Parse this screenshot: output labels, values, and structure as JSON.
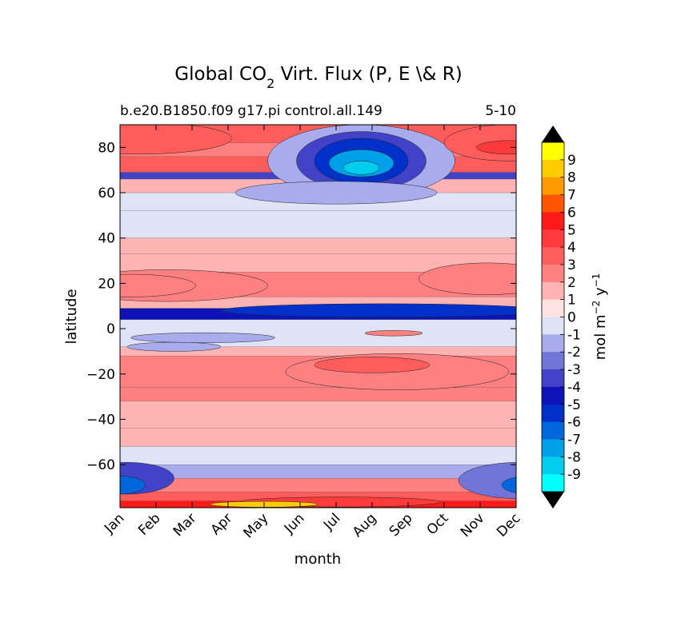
{
  "chart_data": {
    "type": "heatmap",
    "title": "Global CO",
    "title_sub": "2",
    "title_rest": " Virt. Flux (P, E \\& R)",
    "subtitle_left": "b.e20.B1850.f09 g17.pi control.all.149",
    "subtitle_right": "5-10",
    "xlabel": "month",
    "ylabel": "latitude",
    "x_ticks": [
      "Jan",
      "Feb",
      "Mar",
      "Apr",
      "May",
      "Jun",
      "Jul",
      "Aug",
      "Sep",
      "Oct",
      "Nov",
      "Dec"
    ],
    "y_ticks": [
      80,
      60,
      40,
      20,
      0,
      -20,
      -40,
      -60
    ],
    "y_tick_labels": [
      "80",
      "60",
      "40",
      "20",
      "0",
      "−20",
      "−40",
      "−60"
    ],
    "ylim": [
      -79,
      90
    ],
    "colorbar": {
      "label": "mol m",
      "label_sup1": "−2",
      "label_mid": " y",
      "label_sup2": "−1",
      "levels": [
        "9",
        "8",
        "7",
        "6",
        "5",
        "4",
        "3",
        "2",
        "1",
        "0",
        "-1",
        "-2",
        "-3",
        "-4",
        "-5",
        "-6",
        "-7",
        "-8",
        "-9"
      ],
      "colors": [
        "#ffff00",
        "#ffcc00",
        "#ff9900",
        "#ff5500",
        "#ff1a1a",
        "#ff3a3a",
        "#ff5c5c",
        "#ff8080",
        "#ffb3b3",
        "#ffe2e2",
        "#e0e2f5",
        "#a8acec",
        "#7275d8",
        "#4142c8",
        "#0d13b6",
        "#0030c8",
        "#0066dd",
        "#00a0e8",
        "#00ccee",
        "#00ffff"
      ],
      "over_color": "#000000",
      "under_color": "#000000"
    },
    "bands": [
      {
        "lat": [
          82,
          90
        ],
        "level": 3
      },
      {
        "lat": [
          76,
          82
        ],
        "level": 2
      },
      {
        "lat": [
          69,
          76
        ],
        "level": 3
      },
      {
        "lat": [
          66,
          69
        ],
        "level": -4
      },
      {
        "lat": [
          60,
          66
        ],
        "level": 1
      },
      {
        "lat": [
          52,
          60
        ],
        "level": -1
      },
      {
        "lat": [
          40,
          52
        ],
        "level": -1
      },
      {
        "lat": [
          33,
          40
        ],
        "level": 1
      },
      {
        "lat": [
          25,
          33
        ],
        "level": 1
      },
      {
        "lat": [
          14,
          25
        ],
        "level": 2
      },
      {
        "lat": [
          9,
          14
        ],
        "level": 1
      },
      {
        "lat": [
          4,
          9
        ],
        "level": -5
      },
      {
        "lat": [
          -8,
          4
        ],
        "level": -1
      },
      {
        "lat": [
          -12,
          -8
        ],
        "level": 1
      },
      {
        "lat": [
          -26,
          -12
        ],
        "level": 2
      },
      {
        "lat": [
          -32,
          -26
        ],
        "level": 2
      },
      {
        "lat": [
          -44,
          -32
        ],
        "level": 1
      },
      {
        "lat": [
          -52,
          -44
        ],
        "level": 1
      },
      {
        "lat": [
          -60,
          -52
        ],
        "level": -1
      },
      {
        "lat": [
          -66,
          -60
        ],
        "level": -2
      },
      {
        "lat": [
          -72,
          -66
        ],
        "level": 2
      },
      {
        "lat": [
          -76,
          -72
        ],
        "level": 3
      },
      {
        "lat": [
          -79,
          -76
        ],
        "level": 5
      }
    ],
    "features": [
      {
        "type": "blob",
        "month": 6.7,
        "lat": 74,
        "dmonth": 2.6,
        "dlat": 16,
        "level": -2
      },
      {
        "type": "blob",
        "month": 6.7,
        "lat": 74,
        "dmonth": 1.8,
        "dlat": 13,
        "level": -4
      },
      {
        "type": "blob",
        "month": 6.7,
        "lat": 74,
        "dmonth": 1.3,
        "dlat": 10,
        "level": -6
      },
      {
        "type": "blob",
        "month": 6.7,
        "lat": 73,
        "dmonth": 0.9,
        "dlat": 6,
        "level": -8
      },
      {
        "type": "blob",
        "month": 6.7,
        "lat": 71,
        "dmonth": 0.5,
        "dlat": 3,
        "level": -9
      },
      {
        "type": "blob",
        "month": 6.0,
        "lat": 60,
        "dmonth": 2.8,
        "dlat": 5,
        "level": -2
      },
      {
        "type": "blob",
        "month": 0.5,
        "lat": 84,
        "dmonth": 2.6,
        "dlat": 7,
        "level": 3
      },
      {
        "type": "blob",
        "month": 10.8,
        "lat": 82,
        "dmonth": 1.8,
        "dlat": 8,
        "level": 3
      },
      {
        "type": "blob",
        "month": 10.8,
        "lat": 80,
        "dmonth": 0.9,
        "dlat": 3,
        "level": 4
      },
      {
        "type": "blob",
        "month": 1.3,
        "lat": 19,
        "dmonth": 2.8,
        "dlat": 7,
        "level": 2
      },
      {
        "type": "blob",
        "month": 0.3,
        "lat": 19,
        "dmonth": 1.8,
        "dlat": 5,
        "level": 2
      },
      {
        "type": "blob",
        "month": 10.2,
        "lat": 22,
        "dmonth": 1.9,
        "dlat": 7,
        "level": 2
      },
      {
        "type": "blob",
        "month": 7.3,
        "lat": 8,
        "dmonth": 4.5,
        "dlat": 3,
        "level": -6
      },
      {
        "type": "blob",
        "month": 2.3,
        "lat": -4,
        "dmonth": 2.0,
        "dlat": 2.2,
        "level": -2
      },
      {
        "type": "blob",
        "month": 1.5,
        "lat": -8,
        "dmonth": 1.3,
        "dlat": 2,
        "level": -2
      },
      {
        "type": "blob",
        "month": 7.6,
        "lat": -2,
        "dmonth": 0.8,
        "dlat": 1.2,
        "level": 2
      },
      {
        "type": "blob",
        "month": 7.7,
        "lat": -19,
        "dmonth": 3.1,
        "dlat": 8,
        "level": 2
      },
      {
        "type": "blob",
        "month": 7.0,
        "lat": -16,
        "dmonth": 1.6,
        "dlat": 3.5,
        "level": 3
      },
      {
        "type": "blob",
        "month": 0.2,
        "lat": -66,
        "dmonth": 1.3,
        "dlat": 7,
        "level": -4
      },
      {
        "type": "blob",
        "month": 0.0,
        "lat": -69,
        "dmonth": 0.7,
        "dlat": 4,
        "level": -7
      },
      {
        "type": "blob",
        "month": 11.1,
        "lat": -67,
        "dmonth": 1.7,
        "dlat": 8,
        "level": -3
      },
      {
        "type": "blob",
        "month": 11.4,
        "lat": -69,
        "dmonth": 0.8,
        "dlat": 4,
        "level": -7
      },
      {
        "type": "blob",
        "month": 6.1,
        "lat": -76.5,
        "dmonth": 2.8,
        "dlat": 2.2,
        "level": 4
      },
      {
        "type": "blob",
        "month": 4.0,
        "lat": -77.5,
        "dmonth": 1.5,
        "dlat": 1.3,
        "level": 8
      }
    ]
  }
}
